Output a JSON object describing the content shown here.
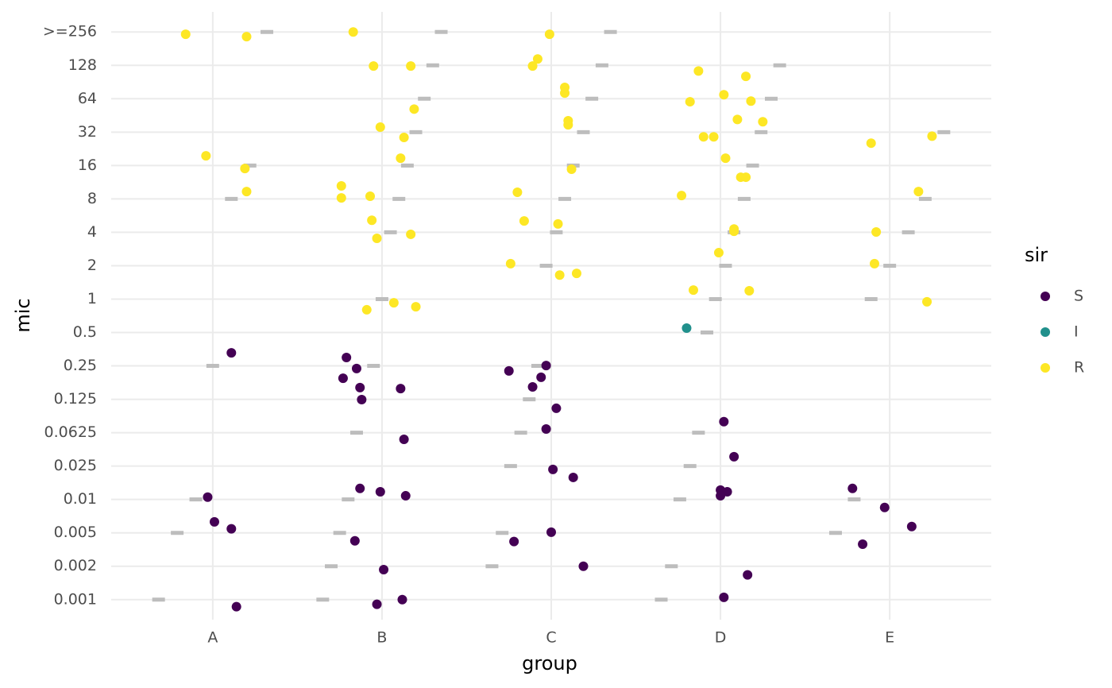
{
  "chart_data": {
    "type": "scatter",
    "x_label": "group",
    "y_label": "mic",
    "legend_title": "sir",
    "grid": true,
    "legend": "right",
    "xlim": [
      0.4,
      5.6
    ],
    "xticks": [
      {
        "value": 1,
        "label": "A"
      },
      {
        "value": 2,
        "label": "B"
      },
      {
        "value": 3,
        "label": "C"
      },
      {
        "value": 4,
        "label": "D"
      },
      {
        "value": 5,
        "label": "E"
      }
    ],
    "ylim": [
      0.4,
      18.6
    ],
    "yticks": [
      {
        "value": 1,
        "label": "0.001"
      },
      {
        "value": 2,
        "label": "0.002"
      },
      {
        "value": 3,
        "label": "0.005"
      },
      {
        "value": 4,
        "label": "0.01"
      },
      {
        "value": 5,
        "label": "0.025"
      },
      {
        "value": 6,
        "label": "0.0625"
      },
      {
        "value": 7,
        "label": "0.125"
      },
      {
        "value": 8,
        "label": "0.25"
      },
      {
        "value": 9,
        "label": "0.5"
      },
      {
        "value": 10,
        "label": "1"
      },
      {
        "value": 11,
        "label": "2"
      },
      {
        "value": 12,
        "label": "4"
      },
      {
        "value": 13,
        "label": "8"
      },
      {
        "value": 14,
        "label": "16"
      },
      {
        "value": 15,
        "label": "32"
      },
      {
        "value": 16,
        "label": "64"
      },
      {
        "value": 17,
        "label": "128"
      },
      {
        "value": 18,
        "label": ">=256"
      }
    ],
    "series": [
      {
        "name": "S",
        "color": "#440154",
        "x": [
          1.11,
          1.79,
          1.85,
          1.77,
          1.87,
          1.88,
          2.11,
          2.75,
          2.97,
          2.94,
          2.89,
          3.03,
          2.97,
          2.13,
          4.02,
          4.08,
          3.01,
          3.13,
          1.87,
          1.99,
          2.14,
          4.0,
          4.04,
          4.0,
          4.78,
          4.97,
          0.97,
          1.01,
          1.11,
          1.84,
          2.78,
          3.0,
          5.13,
          4.84,
          2.01,
          3.19,
          4.16,
          1.14,
          1.97,
          2.12,
          4.02
        ],
        "values": [
          8.39,
          8.25,
          7.92,
          7.63,
          7.35,
          6.99,
          7.32,
          7.85,
          8.01,
          7.66,
          7.37,
          6.73,
          6.11,
          5.8,
          6.33,
          5.28,
          4.9,
          4.66,
          4.33,
          4.23,
          4.11,
          4.28,
          4.23,
          4.11,
          4.33,
          3.76,
          4.07,
          3.33,
          3.12,
          2.76,
          2.74,
          3.02,
          3.19,
          2.66,
          1.9,
          2.0,
          1.74,
          0.79,
          0.86,
          1.0,
          1.07
        ]
      },
      {
        "name": "I",
        "color": "#21908c",
        "x": [
          3.8
        ],
        "values": [
          9.13
        ]
      },
      {
        "name": "R",
        "color": "#fde725",
        "x": [
          0.84,
          1.2,
          1.83,
          2.99,
          1.95,
          2.17,
          2.92,
          2.89,
          3.87,
          4.15,
          3.08,
          3.08,
          3.82,
          4.02,
          4.18,
          2.19,
          3.1,
          3.1,
          4.1,
          4.25,
          1.99,
          2.13,
          3.9,
          3.96,
          4.89,
          5.25,
          0.96,
          2.11,
          4.03,
          1.19,
          3.12,
          4.12,
          4.15,
          1.76,
          1.2,
          1.76,
          1.93,
          2.8,
          3.77,
          5.17,
          1.94,
          2.84,
          3.04,
          4.08,
          4.08,
          1.97,
          2.17,
          4.92,
          3.99,
          2.76,
          4.91,
          3.05,
          3.15,
          3.84,
          4.17,
          2.07,
          1.91,
          2.2,
          5.22
        ],
        "values": [
          17.93,
          17.86,
          18.0,
          17.93,
          16.98,
          16.98,
          17.19,
          16.98,
          16.83,
          16.67,
          16.34,
          16.17,
          15.91,
          16.12,
          15.93,
          15.69,
          15.34,
          15.22,
          15.38,
          15.31,
          15.15,
          14.84,
          14.86,
          14.86,
          14.67,
          14.88,
          14.29,
          14.22,
          14.22,
          13.91,
          13.89,
          13.65,
          13.65,
          13.39,
          13.22,
          13.03,
          13.08,
          13.2,
          13.1,
          13.22,
          12.36,
          12.34,
          12.25,
          12.1,
          12.03,
          11.82,
          11.94,
          12.01,
          11.39,
          11.06,
          11.06,
          10.72,
          10.77,
          10.27,
          10.25,
          9.89,
          9.68,
          9.77,
          9.92
        ]
      }
    ],
    "segments": {
      "color": "#bdbdbd",
      "x": [
        1.32,
        1.22,
        1.11,
        1.0,
        0.9,
        0.79,
        0.68,
        2.35,
        2.3,
        2.25,
        2.2,
        2.15,
        2.1,
        2.05,
        2.0,
        1.95,
        1.85,
        1.8,
        1.75,
        1.7,
        1.65,
        3.35,
        3.3,
        3.24,
        3.19,
        3.13,
        3.08,
        3.03,
        2.97,
        2.92,
        2.87,
        2.82,
        2.76,
        2.71,
        2.65,
        4.35,
        4.3,
        4.24,
        4.19,
        4.14,
        4.08,
        4.03,
        3.97,
        3.92,
        3.87,
        3.82,
        3.76,
        3.71,
        3.65,
        5.32,
        5.21,
        5.11,
        5.0,
        4.89,
        4.79,
        4.68
      ],
      "values": [
        18,
        14,
        13,
        8,
        4,
        3,
        1,
        18,
        17,
        16,
        15,
        14,
        13,
        12,
        10,
        8,
        6,
        4,
        3,
        2,
        1,
        18,
        17,
        16,
        15,
        14,
        13,
        12,
        11,
        8,
        7,
        6,
        5,
        3,
        2,
        17,
        16,
        15,
        14,
        13,
        12,
        11,
        10,
        9,
        6,
        5,
        4,
        2,
        1,
        15,
        13,
        12,
        11,
        10,
        4,
        3
      ]
    }
  }
}
